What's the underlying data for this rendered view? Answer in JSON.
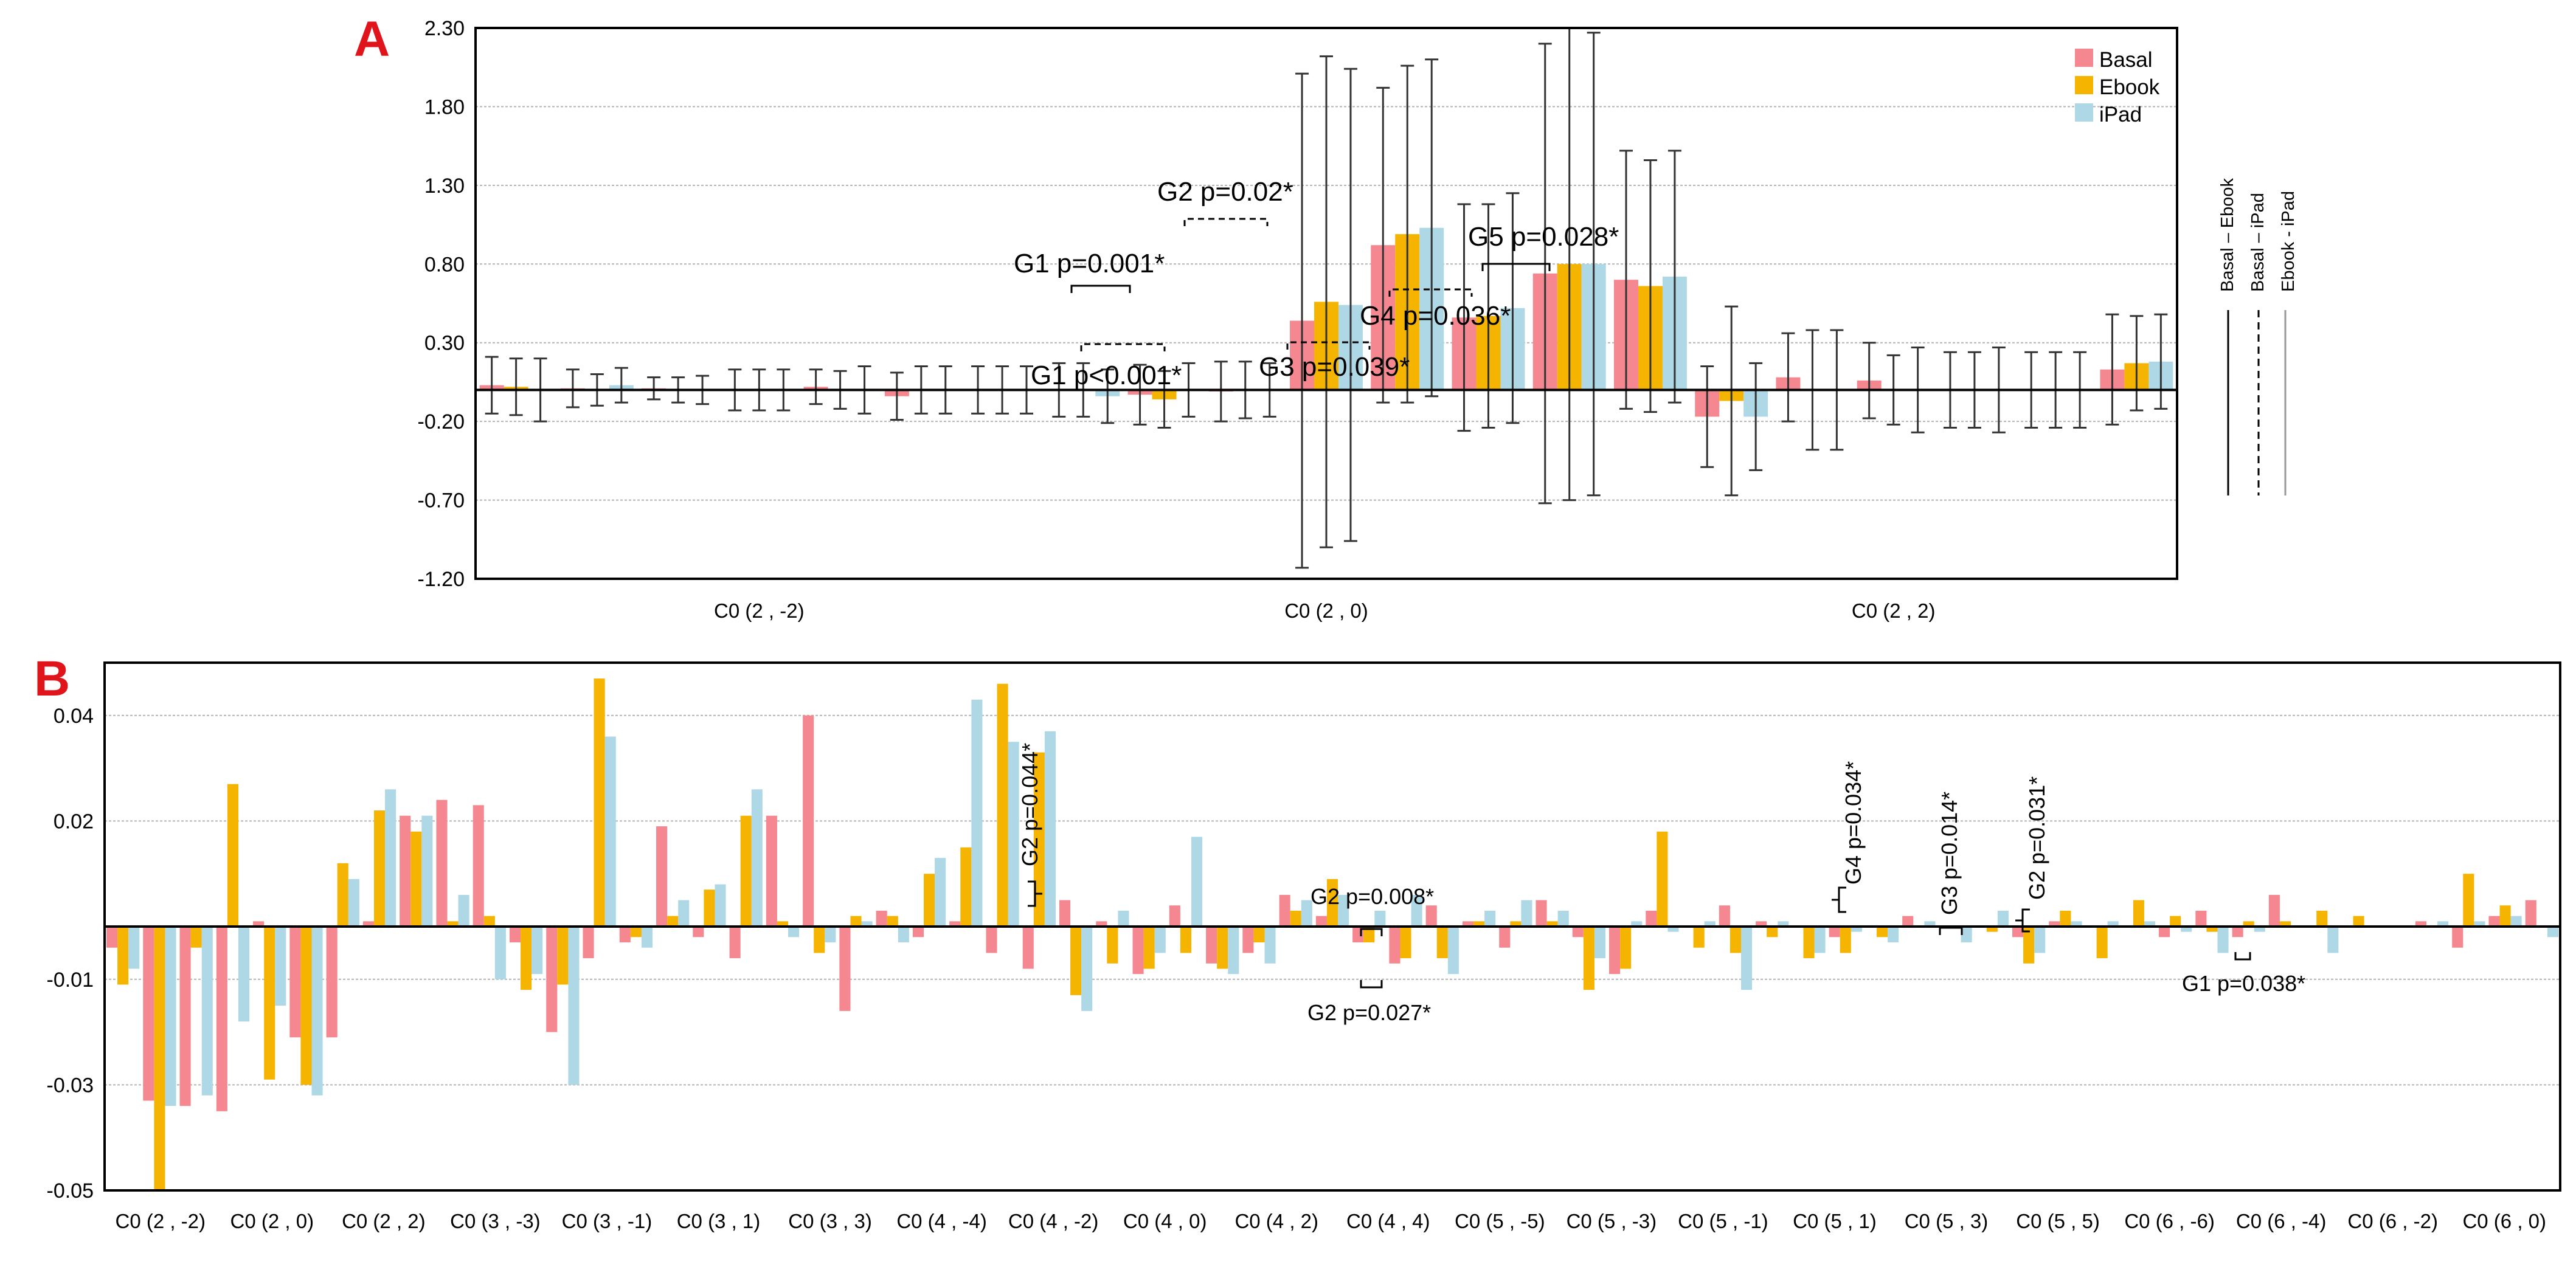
{
  "colors": {
    "basal": "#F4878F",
    "ebook": "#F5B400",
    "ipad": "#AED8E6"
  },
  "chart_data": [
    {
      "panel": "A",
      "type": "bar",
      "ylim": [
        -1.2,
        2.3
      ],
      "yticks": [
        "2.30",
        "1.80",
        "1.30",
        "0.80",
        "0.30",
        "-0.20",
        "-0.70",
        "-1.20"
      ],
      "group_labels": [
        "C0 (2 , -2)",
        "C0 (2 , 0)",
        "C0 (2 , 2)"
      ],
      "legend": [
        "Basal",
        "Ebook",
        "iPad"
      ],
      "side_legend": [
        "Basal – Ebook",
        "Basal – iPad",
        "Ebook - iPad"
      ],
      "series": [
        {
          "name": "Basal",
          "values": [
            0.03,
            0.01,
            0.01,
            0.0,
            0.02,
            -0.04,
            0.0,
            0.0,
            -0.03,
            -0.01,
            0.44,
            0.92,
            0.46,
            0.74,
            0.7,
            -0.17,
            0.08,
            0.06,
            0.0,
            0.0,
            0.13
          ],
          "err": [
            0.18,
            0.12,
            0.07,
            0.13,
            0.11,
            0.15,
            0.15,
            0.17,
            0.19,
            0.19,
            1.57,
            1.0,
            0.72,
            1.46,
            0.82,
            0.32,
            0.28,
            0.24,
            0.24,
            0.24,
            0.35
          ]
        },
        {
          "name": "Ebook",
          "values": [
            0.02,
            0.0,
            0.0,
            0.0,
            0.0,
            0.0,
            0.0,
            0.0,
            -0.06,
            0.0,
            0.56,
            0.99,
            0.47,
            0.8,
            0.66,
            -0.07,
            0.0,
            0.0,
            0.0,
            0.0,
            0.17
          ],
          "err": [
            0.18,
            0.1,
            0.08,
            0.13,
            0.12,
            0.15,
            0.15,
            0.17,
            0.18,
            0.18,
            1.56,
            1.07,
            0.71,
            1.5,
            0.8,
            0.6,
            0.38,
            0.22,
            0.24,
            0.24,
            0.3
          ]
        },
        {
          "name": "iPad",
          "values": [
            0.0,
            0.03,
            0.0,
            0.0,
            0.0,
            0.0,
            0.0,
            -0.04,
            0.0,
            0.0,
            0.54,
            1.03,
            0.52,
            0.8,
            0.72,
            -0.17,
            0.0,
            0.0,
            0.0,
            0.0,
            0.18
          ],
          "err": [
            0.2,
            0.11,
            0.09,
            0.13,
            0.15,
            0.15,
            0.15,
            0.17,
            0.17,
            0.17,
            1.5,
            1.07,
            0.73,
            1.47,
            0.8,
            0.34,
            0.38,
            0.27,
            0.27,
            0.24,
            0.3
          ]
        }
      ],
      "annotations": [
        "G1 p=0.001*",
        "G1 p<0.001*",
        "G2 p=0.02*",
        "G3 p=0.039*",
        "G4 p=0.036*",
        "G5 p=0.028*"
      ]
    },
    {
      "panel": "B",
      "type": "bar",
      "ylim": [
        -0.05,
        0.05
      ],
      "yticks": [
        "0.04",
        "0.02",
        "-0.01",
        "-0.03",
        "-0.05"
      ],
      "group_labels": [
        "C0 (2 , -2)",
        "C0 (2 , 0)",
        "C0 (2 , 2)",
        "C0 (3 , -3)",
        "C0 (3 , -1)",
        "C0 (3 , 1)",
        "C0 (3 , 3)",
        "C0 (4 , -4)",
        "C0 (4 , -2)",
        "C0 (4 , 0)",
        "C0 (4 , 2)",
        "C0 (4 , 4)",
        "C0 (5 , -5)",
        "C0 (5 , -3)",
        "C0 (5 , -1)",
        "C0 (5 , 1)",
        "C0 (5 , 3)",
        "C0 (5 , 5)",
        "C0 (6 , -6)",
        "C0 (6 , -4)",
        "C0 (6 , -2)",
        "C0 (6 , 0)"
      ],
      "series": [
        {
          "name": "Basal",
          "values": [
            -0.004,
            -0.033,
            -0.034,
            -0.035,
            0.001,
            -0.021,
            -0.021,
            0.001,
            0.021,
            0.024,
            0.023,
            -0.003,
            -0.02,
            -0.006,
            -0.003,
            0.019,
            -0.002,
            -0.006,
            0.021,
            0.04,
            -0.016,
            0.003,
            -0.002,
            0.001,
            -0.005,
            -0.008,
            0.005,
            0.001,
            -0.009,
            0.004,
            -0.007,
            -0.005,
            0.006,
            0.002,
            -0.003,
            -0.007,
            0.004,
            0.001,
            -0.004,
            0.005,
            -0.002,
            -0.009,
            0.003,
            0.0,
            0.004,
            0.001,
            0.0,
            -0.002,
            0.0,
            0.002,
            0.0,
            0.0,
            -0.002,
            0.001,
            0.0,
            0.0,
            -0.002,
            0.003,
            -0.002,
            0.006,
            0.0,
            0.0,
            0.0,
            0.001,
            -0.004,
            0.002,
            0.005
          ]
        },
        {
          "name": "Ebook",
          "values": [
            -0.011,
            -0.05,
            -0.004,
            0.027,
            -0.029,
            -0.03,
            0.012,
            0.022,
            0.018,
            0.001,
            0.002,
            -0.012,
            -0.011,
            0.047,
            -0.002,
            0.002,
            0.007,
            0.021,
            0.001,
            -0.005,
            0.002,
            0.002,
            0.01,
            0.015,
            0.046,
            0.033,
            -0.013,
            -0.007,
            -0.008,
            -0.005,
            -0.008,
            -0.003,
            0.003,
            0.009,
            -0.003,
            -0.006,
            -0.006,
            0.001,
            0.001,
            0.001,
            -0.012,
            -0.008,
            0.018,
            -0.004,
            -0.005,
            -0.002,
            -0.006,
            -0.005,
            -0.002,
            0.0,
            0.0,
            -0.001,
            -0.007,
            0.003,
            -0.006,
            0.005,
            0.002,
            -0.001,
            0.001,
            0.001,
            0.003,
            0.002,
            0.0,
            0.0,
            0.01,
            0.004,
            0.0
          ]
        },
        {
          "name": "iPad",
          "values": [
            -0.008,
            -0.034,
            -0.032,
            -0.018,
            -0.015,
            -0.032,
            0.009,
            0.026,
            0.021,
            0.006,
            -0.01,
            -0.009,
            -0.03,
            0.036,
            -0.004,
            0.005,
            0.008,
            0.026,
            -0.002,
            -0.003,
            0.001,
            -0.003,
            0.013,
            0.043,
            0.035,
            0.037,
            -0.016,
            0.003,
            -0.005,
            0.017,
            -0.009,
            -0.007,
            0.005,
            0.006,
            0.003,
            0.006,
            -0.009,
            0.003,
            0.005,
            0.003,
            -0.006,
            0.001,
            -0.001,
            0.001,
            -0.012,
            0.001,
            -0.005,
            -0.001,
            -0.003,
            0.001,
            -0.003,
            0.003,
            -0.005,
            0.001,
            0.001,
            0.001,
            -0.001,
            -0.005,
            -0.001,
            0.0,
            -0.005,
            0.0,
            0.0,
            0.001,
            0.001,
            0.002,
            -0.002
          ]
        }
      ],
      "annotations": [
        "G2 p=0.044*",
        "G2 p=0.008*",
        "G2 p=0.027*",
        "G4 p=0.034*",
        "G3 p=0.014*",
        "G2 p=0.031*",
        "G1 p=0.038*"
      ]
    }
  ]
}
